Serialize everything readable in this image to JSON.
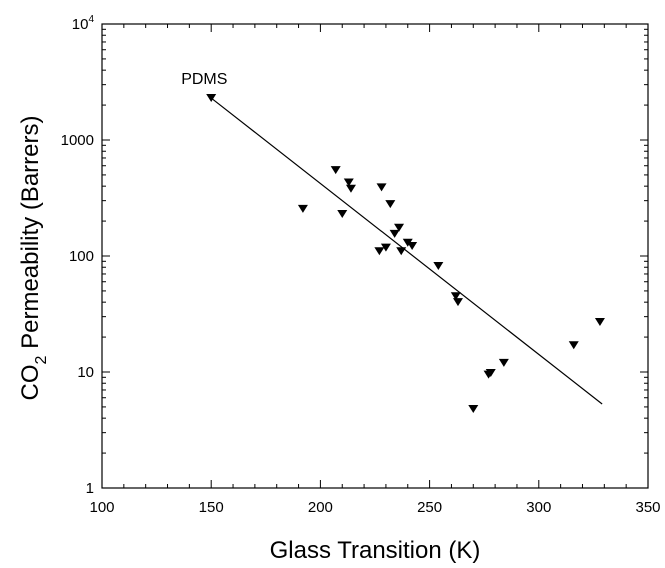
{
  "chart_data": {
    "type": "scatter",
    "xlabel": "Glass Transition (K)",
    "ylabel_main": "CO",
    "ylabel_sub": "2",
    "ylabel_rest": " Permeability (Barrers)",
    "x_scale": "linear",
    "y_scale": "log",
    "xlim": [
      100,
      350
    ],
    "ylim": [
      1,
      10000
    ],
    "grid": false,
    "x_ticks": [
      {
        "value": 100,
        "label": "100"
      },
      {
        "value": 150,
        "label": "150"
      },
      {
        "value": 200,
        "label": "200"
      },
      {
        "value": 250,
        "label": "250"
      },
      {
        "value": 300,
        "label": "300"
      },
      {
        "value": 350,
        "label": "350"
      }
    ],
    "y_ticks": [
      {
        "value": 1,
        "label": "1"
      },
      {
        "value": 10,
        "label": "10"
      },
      {
        "value": 100,
        "label": "100"
      },
      {
        "value": 1000,
        "label": "1000"
      }
    ],
    "y_top_tick": {
      "value": 10000,
      "base": "10",
      "exp": "4"
    },
    "annotations": [
      {
        "text": "PDMS",
        "x": 150,
        "y": 2300
      }
    ],
    "fit_line": {
      "x": [
        150,
        329
      ],
      "y": [
        2300,
        5.3
      ]
    },
    "series": [
      {
        "marker": "triangle-down",
        "color": "#000000",
        "points": [
          {
            "x": 150,
            "y": 2300
          },
          {
            "x": 192,
            "y": 255
          },
          {
            "x": 207,
            "y": 550
          },
          {
            "x": 210,
            "y": 230
          },
          {
            "x": 213,
            "y": 430
          },
          {
            "x": 214,
            "y": 380
          },
          {
            "x": 227,
            "y": 110
          },
          {
            "x": 228,
            "y": 390
          },
          {
            "x": 230,
            "y": 118
          },
          {
            "x": 232,
            "y": 280
          },
          {
            "x": 234,
            "y": 155
          },
          {
            "x": 236,
            "y": 175
          },
          {
            "x": 237,
            "y": 110
          },
          {
            "x": 240,
            "y": 130
          },
          {
            "x": 242,
            "y": 122
          },
          {
            "x": 254,
            "y": 82
          },
          {
            "x": 262,
            "y": 45
          },
          {
            "x": 263,
            "y": 40
          },
          {
            "x": 270,
            "y": 4.8
          },
          {
            "x": 277,
            "y": 9.5
          },
          {
            "x": 278,
            "y": 9.8
          },
          {
            "x": 284,
            "y": 12
          },
          {
            "x": 316,
            "y": 17
          },
          {
            "x": 328,
            "y": 27
          }
        ]
      }
    ]
  }
}
